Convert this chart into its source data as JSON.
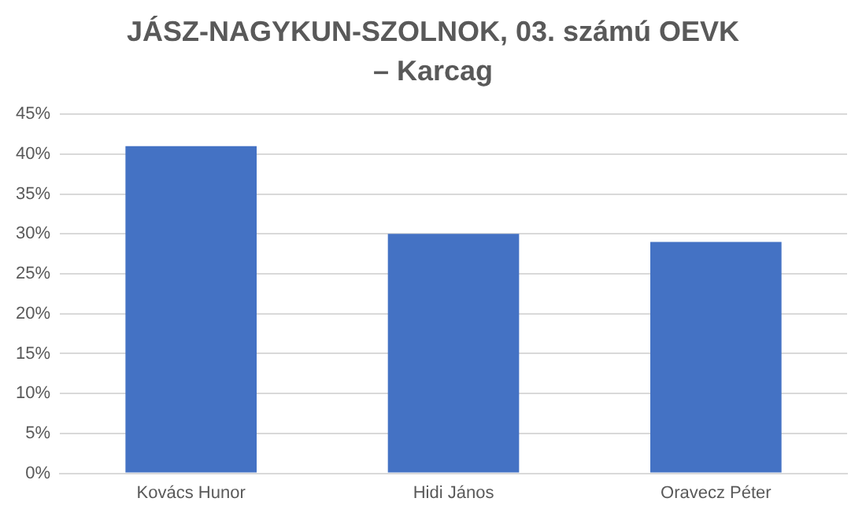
{
  "chart_data": {
    "type": "bar",
    "title": "JÁSZ-NAGYKUN-SZOLNOK, 03. számú OEVK – Karcag",
    "categories": [
      "Kovács Hunor",
      "Hidi János",
      "Oravecz Péter"
    ],
    "values": [
      41,
      30,
      29
    ],
    "color": "#4472c4",
    "ylim": [
      0,
      45
    ],
    "yticks": [
      {
        "value": 0,
        "label": "0%"
      },
      {
        "value": 5,
        "label": "5%"
      },
      {
        "value": 10,
        "label": "10%"
      },
      {
        "value": 15,
        "label": "15%"
      },
      {
        "value": 20,
        "label": "20%"
      },
      {
        "value": 25,
        "label": "25%"
      },
      {
        "value": 30,
        "label": "30%"
      },
      {
        "value": 35,
        "label": "35%"
      },
      {
        "value": 40,
        "label": "40%"
      },
      {
        "value": 45,
        "label": "45%"
      }
    ],
    "grid": "y"
  }
}
